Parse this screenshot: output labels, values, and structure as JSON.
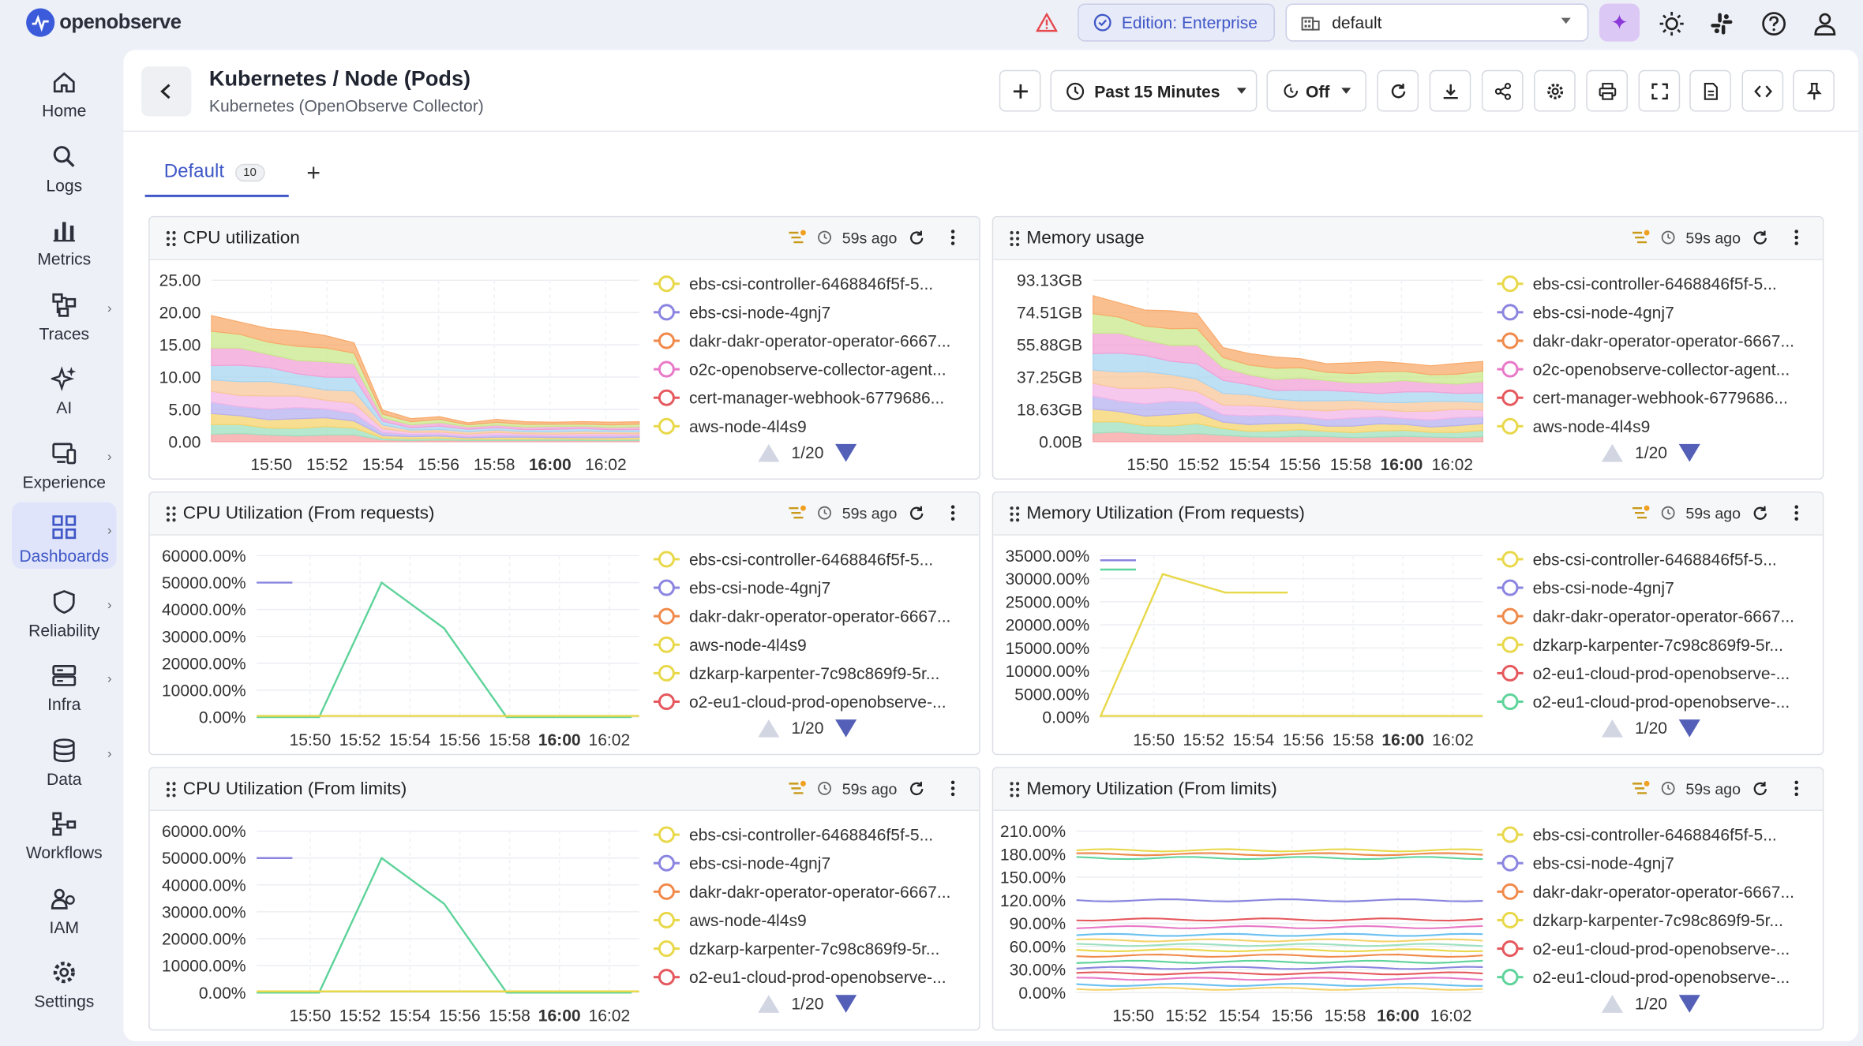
{
  "brand": {
    "name": "openobserve"
  },
  "topbar": {
    "edition": "Edition: Enterprise",
    "org": "default"
  },
  "sidebar": {
    "items": [
      {
        "label": "Home",
        "icon": "home-icon"
      },
      {
        "label": "Logs",
        "icon": "search-icon"
      },
      {
        "label": "Metrics",
        "icon": "bar-chart-icon"
      },
      {
        "label": "Traces",
        "icon": "traces-icon"
      },
      {
        "label": "AI",
        "icon": "sparkle-icon"
      },
      {
        "label": "Experience",
        "icon": "devices-icon"
      },
      {
        "label": "Dashboards",
        "icon": "dashboard-icon"
      },
      {
        "label": "Reliability",
        "icon": "shield-icon"
      },
      {
        "label": "Infra",
        "icon": "server-icon"
      },
      {
        "label": "Data",
        "icon": "database-icon"
      },
      {
        "label": "Workflows",
        "icon": "workflow-icon"
      },
      {
        "label": "IAM",
        "icon": "users-icon"
      },
      {
        "label": "Settings",
        "icon": "gear-icon"
      }
    ]
  },
  "dashboard": {
    "title": "Kubernetes / Node (Pods)",
    "subtitle": "Kubernetes (OpenObserve Collector)",
    "time_range": "Past 15 Minutes",
    "refresh": "Off",
    "tab": {
      "label": "Default",
      "count": "10"
    }
  },
  "panels": [
    {
      "title": "CPU utilization",
      "updated": "59s ago",
      "pager": "1/20",
      "legend": [
        "ebs-csi-controller-6468846f5f-5...",
        "ebs-csi-node-4gnj7",
        "dakr-dakr-operator-operator-6667...",
        "o2c-openobserve-collector-agent...",
        "cert-manager-webhook-6779686...",
        "aws-node-4l4s9"
      ]
    },
    {
      "title": "Memory usage",
      "updated": "59s ago",
      "pager": "1/20",
      "legend": [
        "ebs-csi-controller-6468846f5f-5...",
        "ebs-csi-node-4gnj7",
        "dakr-dakr-operator-operator-6667...",
        "o2c-openobserve-collector-agent...",
        "cert-manager-webhook-6779686...",
        "aws-node-4l4s9"
      ]
    },
    {
      "title": "CPU Utilization (From requests)",
      "updated": "59s ago",
      "pager": "1/20",
      "legend": [
        "ebs-csi-controller-6468846f5f-5...",
        "ebs-csi-node-4gnj7",
        "dakr-dakr-operator-operator-6667...",
        "aws-node-4l4s9",
        "dzkarp-karpenter-7c98c869f9-5r...",
        "o2-eu1-cloud-prod-openobserve-..."
      ]
    },
    {
      "title": "Memory Utilization (From requests)",
      "updated": "59s ago",
      "pager": "1/20",
      "legend": [
        "ebs-csi-controller-6468846f5f-5...",
        "ebs-csi-node-4gnj7",
        "dakr-dakr-operator-operator-6667...",
        "dzkarp-karpenter-7c98c869f9-5r...",
        "o2-eu1-cloud-prod-openobserve-...",
        "o2-eu1-cloud-prod-openobserve-..."
      ]
    },
    {
      "title": "CPU Utilization (From limits)",
      "updated": "59s ago",
      "pager": "1/20",
      "legend": [
        "ebs-csi-controller-6468846f5f-5...",
        "ebs-csi-node-4gnj7",
        "dakr-dakr-operator-operator-6667...",
        "aws-node-4l4s9",
        "dzkarp-karpenter-7c98c869f9-5r...",
        "o2-eu1-cloud-prod-openobserve-..."
      ]
    },
    {
      "title": "Memory Utilization (From limits)",
      "updated": "59s ago",
      "pager": "1/20",
      "legend": [
        "ebs-csi-controller-6468846f5f-5...",
        "ebs-csi-node-4gnj7",
        "dakr-dakr-operator-operator-6667...",
        "dzkarp-karpenter-7c98c869f9-5r...",
        "o2-eu1-cloud-prod-openobserve-...",
        "o2-eu1-cloud-prod-openobserve-..."
      ]
    }
  ],
  "legend_colors": [
    [
      "#e8d84a",
      "#8b85e0",
      "#f08a4b",
      "#e879c8",
      "#e5585d",
      "#e8d84a"
    ],
    [
      "#e8d84a",
      "#8b85e0",
      "#f08a4b",
      "#e879c8",
      "#e5585d",
      "#e8d84a"
    ],
    [
      "#e8d84a",
      "#8b85e0",
      "#f08a4b",
      "#e8d84a",
      "#e8d84a",
      "#e5585d"
    ],
    [
      "#e8d84a",
      "#8b85e0",
      "#f08a4b",
      "#e8d84a",
      "#e5585d",
      "#5ed39a"
    ],
    [
      "#e8d84a",
      "#8b85e0",
      "#f08a4b",
      "#e8d84a",
      "#e8d84a",
      "#e5585d"
    ],
    [
      "#e8d84a",
      "#8b85e0",
      "#f08a4b",
      "#e8d84a",
      "#e5585d",
      "#5ed39a"
    ]
  ],
  "chart_data": [
    {
      "type": "area",
      "title": "CPU utilization",
      "x": [
        "15:50",
        "15:52",
        "15:54",
        "15:56",
        "15:58",
        "16:00",
        "16:02"
      ],
      "yticks": [
        "25.00",
        "20.00",
        "15.00",
        "10.00",
        "5.00",
        "0.00"
      ],
      "ylim": [
        0,
        25
      ],
      "series_total": [
        19,
        18.5,
        18,
        17,
        16,
        15.5,
        5,
        3.5,
        3.8,
        3,
        3.5,
        3,
        3,
        3.2,
        3,
        3
      ],
      "stacked": true
    },
    {
      "type": "area",
      "title": "Memory usage",
      "x": [
        "15:50",
        "15:52",
        "15:54",
        "15:56",
        "15:58",
        "16:00",
        "16:02"
      ],
      "yticks": [
        "93.13GB",
        "74.51GB",
        "55.88GB",
        "37.25GB",
        "18.63GB",
        "0.00B"
      ],
      "ylim": [
        0,
        93.13
      ],
      "series_total": [
        82,
        80,
        78,
        75,
        72,
        55,
        52,
        48,
        47,
        46,
        46,
        45,
        45,
        45,
        45,
        45
      ],
      "stacked": true
    },
    {
      "type": "line",
      "title": "CPU Utilization (From requests)",
      "x": [
        "15:50",
        "15:52",
        "15:54",
        "15:56",
        "15:58",
        "16:00",
        "16:02"
      ],
      "yticks": [
        "60000.00%",
        "50000.00%",
        "40000.00%",
        "30000.00%",
        "20000.00%",
        "10000.00%",
        "0.00%"
      ],
      "ylim": [
        0,
        60000
      ],
      "series": [
        {
          "values": [
            50000,
            50000,
            50000,
            null,
            null,
            null,
            null
          ]
        },
        {
          "values": [
            0,
            0,
            50000,
            33000,
            0,
            0,
            0
          ]
        }
      ]
    },
    {
      "type": "line",
      "title": "Memory Utilization (From requests)",
      "x": [
        "15:50",
        "15:52",
        "15:54",
        "15:56",
        "15:58",
        "16:00",
        "16:02"
      ],
      "yticks": [
        "35000.00%",
        "30000.00%",
        "25000.00%",
        "20000.00%",
        "15000.00%",
        "10000.00%",
        "5000.00%",
        "0.00%"
      ],
      "ylim": [
        0,
        35000
      ],
      "series": [
        {
          "values": [
            34000,
            34000,
            34000,
            null,
            null,
            null,
            null
          ]
        },
        {
          "values": [
            32000,
            32000,
            32000,
            null,
            null,
            null,
            null
          ]
        },
        {
          "values": [
            0,
            31000,
            27000,
            27000,
            null,
            null,
            null
          ]
        }
      ]
    },
    {
      "type": "line",
      "title": "CPU Utilization (From limits)",
      "x": [
        "15:50",
        "15:52",
        "15:54",
        "15:56",
        "15:58",
        "16:00",
        "16:02"
      ],
      "yticks": [
        "60000.00%",
        "50000.00%",
        "40000.00%",
        "30000.00%",
        "20000.00%",
        "10000.00%",
        "0.00%"
      ],
      "ylim": [
        0,
        60000
      ],
      "series": [
        {
          "values": [
            50000,
            50000,
            50000,
            null,
            null,
            null,
            null
          ]
        },
        {
          "values": [
            0,
            0,
            50000,
            33000,
            0,
            0,
            0
          ]
        }
      ]
    },
    {
      "type": "line",
      "title": "Memory Utilization (From limits)",
      "x": [
        "15:50",
        "15:52",
        "15:54",
        "15:56",
        "15:58",
        "16:00",
        "16:02"
      ],
      "yticks": [
        "210.00%",
        "180.00%",
        "150.00%",
        "120.00%",
        "90.00%",
        "60.00%",
        "30.00%",
        "0.00%"
      ],
      "ylim": [
        0,
        210
      ],
      "series_levels": [
        185,
        180,
        175,
        120,
        95,
        85,
        75,
        68,
        62,
        55,
        48,
        40,
        32,
        25,
        18,
        10,
        5
      ]
    }
  ]
}
